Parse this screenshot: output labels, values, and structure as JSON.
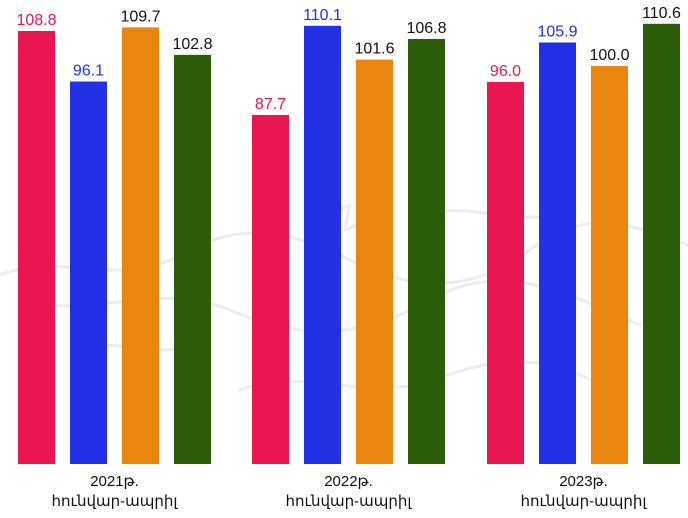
{
  "chart_data": {
    "type": "bar",
    "categories": [
      "2021թ.\nհունվար-ապրիլ",
      "2022թ.\nհունվար-ապրիլ",
      "2023թ.\nհունվար-ապրիլ"
    ],
    "category_lines": [
      [
        "2021թ.",
        "հունվար-ապրիլ"
      ],
      [
        "2022թ.",
        "հունվար-ապրիլ"
      ],
      [
        "2023թ.",
        "հունվար-ապրիլ"
      ]
    ],
    "series": [
      {
        "values": [
          108.8,
          87.7,
          96.0
        ],
        "labels": [
          "108.8",
          "87.7",
          "96.0"
        ],
        "color": "#ea1652"
      },
      {
        "values": [
          96.1,
          110.1,
          105.9
        ],
        "labels": [
          "96.1",
          "110.1",
          "105.9"
        ],
        "color": "#2230e6"
      },
      {
        "values": [
          109.7,
          101.6,
          100.0
        ],
        "labels": [
          "109.7",
          "101.6",
          "100.0"
        ],
        "color": "#e8860f"
      },
      {
        "values": [
          102.8,
          106.8,
          110.6
        ],
        "labels": [
          "102.8",
          "106.8",
          "110.6"
        ],
        "color": "#2a5c0a"
      }
    ],
    "label_colors": [
      "#ea1652",
      "#2230e6",
      "#111111",
      "#111111"
    ],
    "grid": false,
    "legend": "none"
  }
}
